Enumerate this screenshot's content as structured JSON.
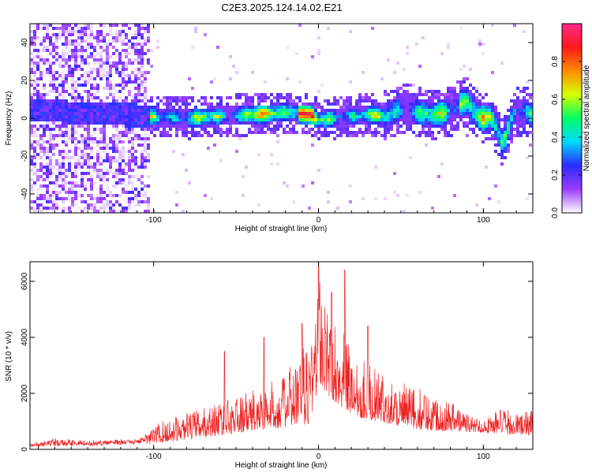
{
  "title": "C2E3.2025.124.14.02.E21",
  "chart_data": [
    {
      "type": "heatmap",
      "xlabel": "Height of straight line (km)",
      "ylabel": "Frequency (Hz)",
      "xlim": [
        -175,
        130
      ],
      "ylim": [
        -50,
        50
      ],
      "xticks": [
        -100,
        0,
        100
      ],
      "yticks": [
        40,
        20,
        0,
        -20,
        -40
      ],
      "colorbar": {
        "label": "Normalized spectral amplitude",
        "range": [
          0,
          1
        ],
        "ticks": [
          "0.0",
          "0.2",
          "0.4",
          "0.6",
          "0.8"
        ],
        "colors": [
          "#ffffff",
          "#9b3cff",
          "#2b2bff",
          "#00d8ff",
          "#00ff66",
          "#d7ff00",
          "#ff8a00",
          "#ff1a1a",
          "#ff2a8a"
        ]
      },
      "band_center_hz": [
        [
          -160,
          4
        ],
        [
          -150,
          3
        ],
        [
          -120,
          2
        ],
        [
          -100,
          1
        ],
        [
          -80,
          0
        ],
        [
          -60,
          1
        ],
        [
          -40,
          2
        ],
        [
          -20,
          3
        ],
        [
          -5,
          2
        ],
        [
          0,
          -1
        ],
        [
          10,
          0
        ],
        [
          20,
          1
        ],
        [
          30,
          2
        ],
        [
          40,
          1
        ],
        [
          48,
          4
        ],
        [
          55,
          6
        ],
        [
          60,
          3
        ],
        [
          70,
          2
        ],
        [
          80,
          3
        ],
        [
          85,
          7
        ],
        [
          90,
          9
        ],
        [
          95,
          2
        ],
        [
          100,
          0
        ],
        [
          105,
          1
        ],
        [
          108,
          -6
        ],
        [
          112,
          -14
        ],
        [
          118,
          3
        ],
        [
          125,
          4
        ],
        [
          130,
          1
        ]
      ]
    },
    {
      "type": "line",
      "xlabel": "Height of straight line (km)",
      "ylabel": "SNR (10 * v/v)",
      "xlim": [
        -175,
        130
      ],
      "ylim": [
        0,
        6700
      ],
      "xticks": [
        -100,
        0,
        100
      ],
      "yticks": [
        0,
        2000,
        4000,
        6000
      ],
      "color": "#ee2222",
      "envelope": [
        [
          -175,
          200
        ],
        [
          -160,
          450
        ],
        [
          -140,
          350
        ],
        [
          -110,
          380
        ],
        [
          -100,
          900
        ],
        [
          -80,
          1300
        ],
        [
          -60,
          1700
        ],
        [
          -40,
          2100
        ],
        [
          -20,
          2700
        ],
        [
          -10,
          3600
        ],
        [
          -5,
          4300
        ],
        [
          0,
          6400
        ],
        [
          5,
          5000
        ],
        [
          15,
          4200
        ],
        [
          25,
          3400
        ],
        [
          40,
          2600
        ],
        [
          60,
          2200
        ],
        [
          80,
          1800
        ],
        [
          90,
          1300
        ],
        [
          100,
          1050
        ],
        [
          110,
          1500
        ],
        [
          120,
          1300
        ],
        [
          130,
          1400
        ]
      ],
      "peaks": [
        [
          0,
          6700
        ],
        [
          8,
          5600
        ],
        [
          16,
          6400
        ],
        [
          30,
          4400
        ],
        [
          -10,
          4500
        ],
        [
          -33,
          4000
        ],
        [
          -57,
          3500
        ]
      ],
      "baseline": [
        [
          -175,
          80
        ],
        [
          -100,
          200
        ],
        [
          -60,
          500
        ],
        [
          -20,
          800
        ],
        [
          -5,
          900
        ],
        [
          0,
          2200
        ],
        [
          20,
          1200
        ],
        [
          60,
          700
        ],
        [
          100,
          600
        ],
        [
          130,
          500
        ]
      ]
    }
  ]
}
